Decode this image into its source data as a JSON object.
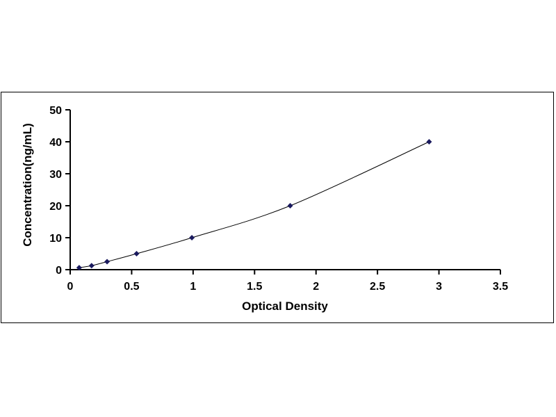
{
  "chart_data": {
    "type": "scatter",
    "title": "",
    "xlabel": "Optical Density",
    "ylabel": "Concentration(ng/mL)",
    "xlim": [
      0,
      3.5
    ],
    "ylim": [
      0,
      50
    ],
    "xticks": [
      "0",
      "0.5",
      "1",
      "1.5",
      "2",
      "2.5",
      "3",
      "3.5"
    ],
    "yticks": [
      "0",
      "10",
      "20",
      "30",
      "40",
      "50"
    ],
    "grid": false,
    "legend": "none",
    "marker_color": "#1a1a5e",
    "line_color": "#000000",
    "trendline": "smooth curve through points",
    "series": [
      {
        "x": [
          0.073,
          0.174,
          0.3,
          0.54,
          0.99,
          1.79,
          2.92
        ],
        "y": [
          0.625,
          1.25,
          2.5,
          5,
          10,
          20,
          40
        ]
      }
    ]
  }
}
